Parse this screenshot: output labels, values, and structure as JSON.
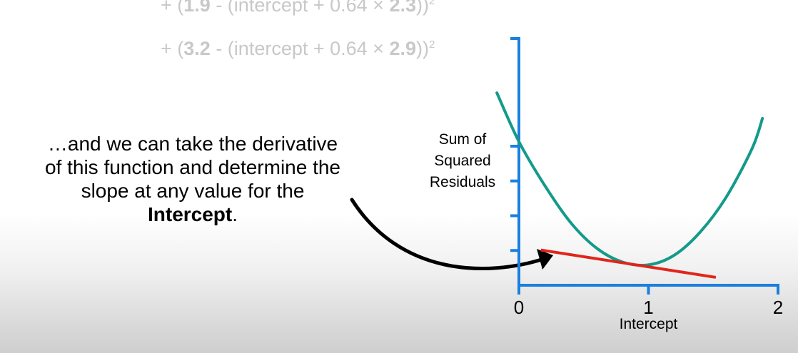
{
  "equation": {
    "line1": {
      "prefix": "+ (",
      "y": "1.9",
      "mid": " - (intercept + 0.64 × ",
      "x": "2.3",
      "suffix": "))",
      "power": "2"
    },
    "line2": {
      "prefix": "+ (",
      "y": "3.2",
      "mid": " - (intercept + 0.64 × ",
      "x": "2.9",
      "suffix": "))",
      "power": "2"
    }
  },
  "caption": {
    "text": "…and we can take the derivative of this function and determine the slope at any value for the ",
    "bold": "Intercept",
    "end": "."
  },
  "colors": {
    "axis": "#1a7fe0",
    "curve": "#149a8a",
    "tangent": "#e0251b",
    "arrow": "#000000",
    "equation": "#c8c8c8"
  },
  "chart_data": {
    "type": "line",
    "title": "",
    "xlabel": "Intercept",
    "ylabel_lines": [
      "Sum of",
      "Squared",
      "Residuals"
    ],
    "xlim": [
      0,
      2
    ],
    "ylim": [
      0,
      4
    ],
    "xticks": [
      "0",
      "1",
      "2"
    ],
    "series": [
      {
        "name": "sum-of-squared-residuals",
        "x": [
          -0.17,
          0.0,
          0.2,
          0.4,
          0.6,
          0.8,
          1.0,
          1.2,
          1.4,
          1.6,
          1.8,
          1.88
        ],
        "y": [
          4.15,
          3.1,
          2.15,
          1.35,
          0.8,
          0.5,
          0.44,
          0.65,
          1.15,
          1.9,
          2.95,
          3.6
        ]
      },
      {
        "name": "tangent-line",
        "x": [
          0.17,
          1.52
        ],
        "y": [
          0.76,
          0.17
        ]
      }
    ],
    "arrow_annotation": "points from caption to tangent line"
  }
}
